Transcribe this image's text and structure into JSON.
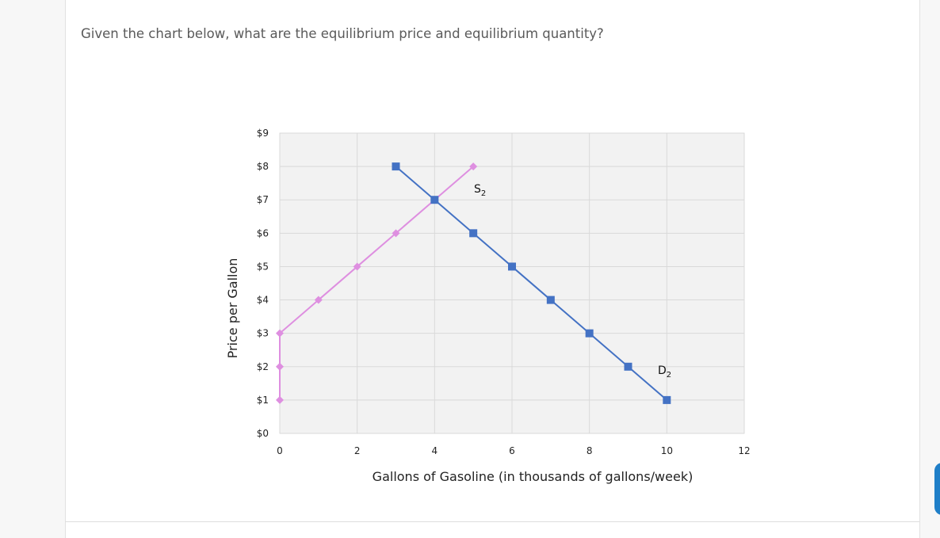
{
  "question": "Given the chart below, what are the equilibrium price and equilibrium quantity?",
  "chart_data": {
    "type": "line",
    "title": "",
    "xlabel": "Gallons of Gasoline (in thousands of gallons/week)",
    "ylabel": "Price per Gallon",
    "xlim": [
      0,
      12
    ],
    "ylim": [
      0,
      9
    ],
    "xticks": [
      0,
      2,
      4,
      6,
      8,
      10,
      12
    ],
    "yticks": [
      {
        "value": 0,
        "label": "$0"
      },
      {
        "value": 1,
        "label": "$1"
      },
      {
        "value": 2,
        "label": "$2"
      },
      {
        "value": 3,
        "label": "$3"
      },
      {
        "value": 4,
        "label": "$4"
      },
      {
        "value": 5,
        "label": "$5"
      },
      {
        "value": 6,
        "label": "$6"
      },
      {
        "value": 7,
        "label": "$7"
      },
      {
        "value": 8,
        "label": "$8"
      },
      {
        "value": 9,
        "label": "$9"
      }
    ],
    "grid": true,
    "series": [
      {
        "name": "S2",
        "label_main": "S",
        "label_sub": "2",
        "color": "#de8fe0",
        "marker": "diamond",
        "points": [
          [
            0,
            1
          ],
          [
            0,
            2
          ],
          [
            0,
            3
          ],
          [
            1,
            4
          ],
          [
            2,
            5
          ],
          [
            3,
            6
          ],
          [
            4,
            7
          ],
          [
            5,
            8
          ]
        ]
      },
      {
        "name": "D2",
        "label_main": "D",
        "label_sub": "2",
        "color": "#4472c4",
        "marker": "square",
        "points": [
          [
            3,
            8
          ],
          [
            4,
            7
          ],
          [
            5,
            6
          ],
          [
            6,
            5
          ],
          [
            7,
            4
          ],
          [
            8,
            3
          ],
          [
            9,
            2
          ],
          [
            10,
            1
          ]
        ]
      }
    ]
  }
}
